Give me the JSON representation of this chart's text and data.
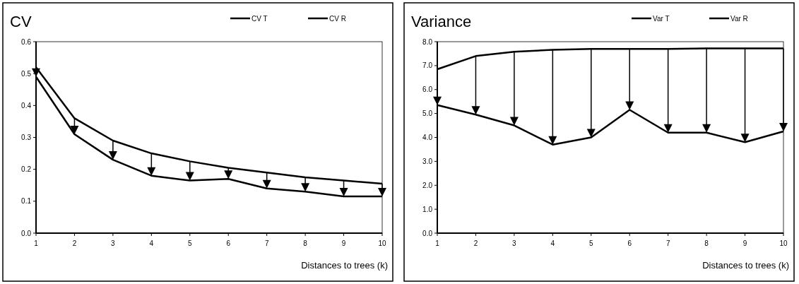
{
  "chart_data": [
    {
      "type": "line",
      "title": "CV",
      "xlabel": "Distances to trees (k)",
      "x": [
        1,
        2,
        3,
        4,
        5,
        6,
        7,
        8,
        9,
        10
      ],
      "series": [
        {
          "name": "CV T",
          "color": "#000000",
          "values": [
            0.52,
            0.36,
            0.29,
            0.25,
            0.225,
            0.205,
            0.19,
            0.175,
            0.165,
            0.155
          ]
        },
        {
          "name": "CV R",
          "color": "#000000",
          "values": [
            0.49,
            0.31,
            0.23,
            0.18,
            0.165,
            0.17,
            0.14,
            0.13,
            0.115,
            0.115
          ]
        }
      ],
      "xlim": [
        1,
        10
      ],
      "xticks": [
        1,
        2,
        3,
        4,
        5,
        6,
        7,
        8,
        9,
        10
      ],
      "ylim": [
        0,
        0.6
      ],
      "yticks": [
        {
          "value": 0,
          "label": "0.0"
        },
        {
          "value": 0.1,
          "label": "0.1"
        },
        {
          "value": 0.2,
          "label": "0.2"
        },
        {
          "value": 0.3,
          "label": "0.3"
        },
        {
          "value": 0.4,
          "label": "0.4"
        },
        {
          "value": 0.5,
          "label": "0.5"
        },
        {
          "value": 0.6,
          "label": "0.6"
        }
      ],
      "legend": "top right",
      "marker": "none",
      "line_style": "solid"
    },
    {
      "type": "line",
      "title": "Variance",
      "xlabel": "Distances to trees (k)",
      "x": [
        1,
        2,
        3,
        4,
        5,
        6,
        7,
        8,
        9,
        10
      ],
      "series": [
        {
          "name": "Var T",
          "color": "#000000",
          "values": [
            6.85,
            7.4,
            7.58,
            7.66,
            7.7,
            7.7,
            7.7,
            7.72,
            7.72,
            7.72
          ]
        },
        {
          "name": "Var R",
          "color": "#000000",
          "values": [
            5.35,
            4.95,
            4.5,
            3.7,
            4.0,
            5.15,
            4.2,
            4.2,
            3.8,
            4.25
          ]
        }
      ],
      "xlim": [
        1,
        10
      ],
      "xticks": [
        1,
        2,
        3,
        4,
        5,
        6,
        7,
        8,
        9,
        10
      ],
      "ylim": [
        0,
        8
      ],
      "yticks": [
        {
          "value": 0,
          "label": "0.0"
        },
        {
          "value": 1,
          "label": "1.0"
        },
        {
          "value": 2,
          "label": "2.0"
        },
        {
          "value": 3,
          "label": "3.0"
        },
        {
          "value": 4,
          "label": "4.0"
        },
        {
          "value": 5,
          "label": "5.0"
        },
        {
          "value": 6,
          "label": "6.0"
        },
        {
          "value": 7,
          "label": "7.0"
        },
        {
          "value": 8,
          "label": "8.0"
        }
      ],
      "legend": "top right",
      "marker": "none",
      "line_style": "solid"
    }
  ]
}
